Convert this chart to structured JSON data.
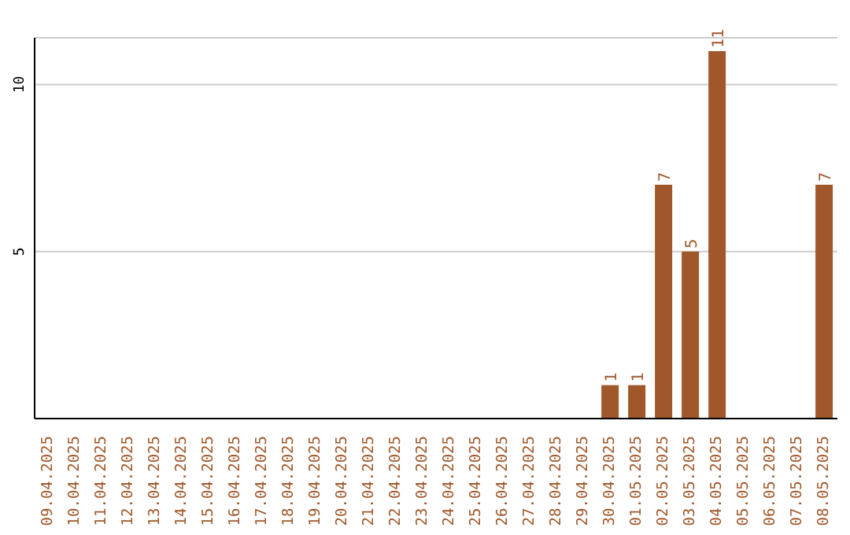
{
  "chart_data": {
    "type": "bar",
    "categories": [
      "09.04.2025",
      "10.04.2025",
      "11.04.2025",
      "12.04.2025",
      "13.04.2025",
      "14.04.2025",
      "15.04.2025",
      "16.04.2025",
      "17.04.2025",
      "18.04.2025",
      "19.04.2025",
      "20.04.2025",
      "21.04.2025",
      "22.04.2025",
      "23.04.2025",
      "24.04.2025",
      "25.04.2025",
      "26.04.2025",
      "27.04.2025",
      "28.04.2025",
      "29.04.2025",
      "30.04.2025",
      "01.05.2025",
      "02.05.2025",
      "03.05.2025",
      "04.05.2025",
      "05.05.2025",
      "06.05.2025",
      "07.05.2025",
      "08.05.2025"
    ],
    "values": [
      0,
      0,
      0,
      0,
      0,
      0,
      0,
      0,
      0,
      0,
      0,
      0,
      0,
      0,
      0,
      0,
      0,
      0,
      0,
      0,
      0,
      1,
      1,
      7,
      5,
      11,
      0,
      0,
      0,
      7
    ],
    "value_labels": [
      null,
      null,
      null,
      null,
      null,
      null,
      null,
      null,
      null,
      null,
      null,
      null,
      null,
      null,
      null,
      null,
      null,
      null,
      null,
      null,
      null,
      "1",
      "1",
      "7",
      "5",
      "11",
      null,
      null,
      null,
      "7"
    ],
    "color": "#a0582a",
    "ylim": [
      0,
      11.4
    ],
    "yticks": [
      5,
      10
    ],
    "grid": "y"
  }
}
